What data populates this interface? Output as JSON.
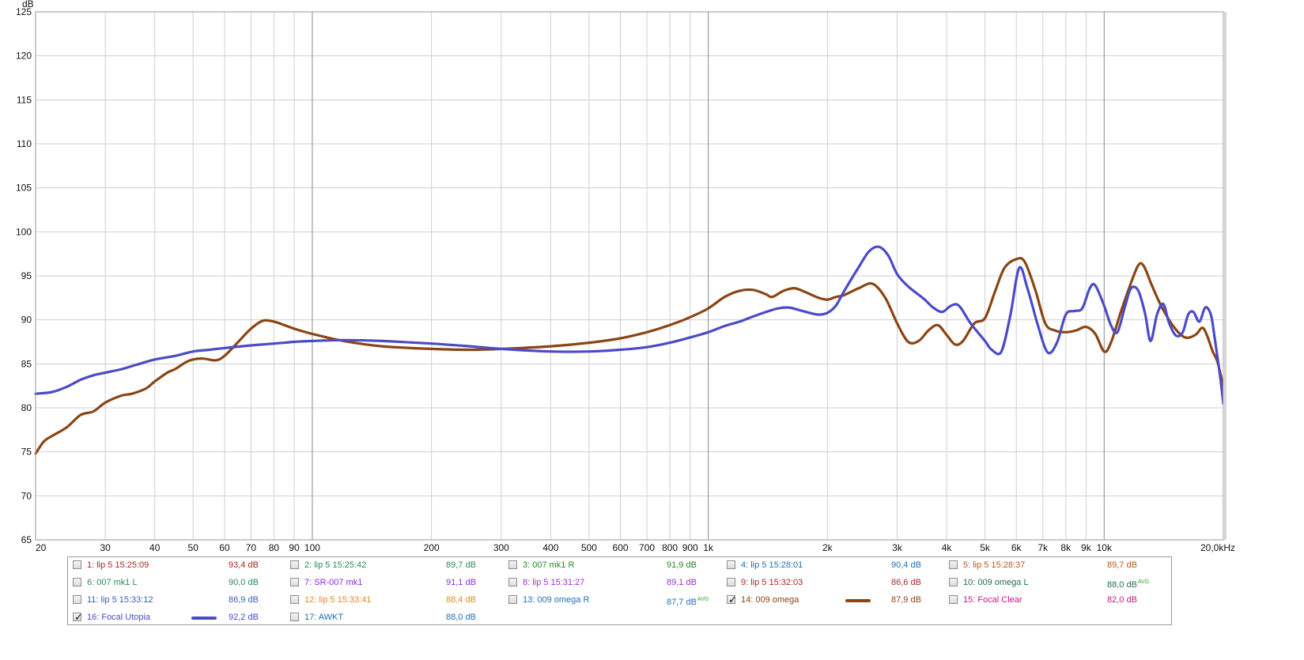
{
  "chart_data": {
    "type": "line",
    "ylabel": "dB",
    "xscale": "log",
    "xlim": [
      20,
      20000
    ],
    "ylim": [
      65,
      125
    ],
    "grid": true,
    "y_ticks": [
      "125",
      "120",
      "115",
      "110",
      "105",
      "100",
      "95",
      "90",
      "85",
      "80",
      "75",
      "70",
      "65"
    ],
    "x_ticks": [
      {
        "value": 20,
        "label": "20"
      },
      {
        "value": 30,
        "label": "30"
      },
      {
        "value": 40,
        "label": "40"
      },
      {
        "value": 50,
        "label": "50"
      },
      {
        "value": 60,
        "label": "60"
      },
      {
        "value": 70,
        "label": "70"
      },
      {
        "value": 80,
        "label": "80"
      },
      {
        "value": 90,
        "label": "90"
      },
      {
        "value": 100,
        "label": "100"
      },
      {
        "value": 200,
        "label": "200"
      },
      {
        "value": 300,
        "label": "300"
      },
      {
        "value": 400,
        "label": "400"
      },
      {
        "value": 500,
        "label": "500"
      },
      {
        "value": 600,
        "label": "600"
      },
      {
        "value": 700,
        "label": "700"
      },
      {
        "value": 800,
        "label": "800"
      },
      {
        "value": 900,
        "label": "900"
      },
      {
        "value": 1000,
        "label": "1k"
      },
      {
        "value": 2000,
        "label": "2k"
      },
      {
        "value": 3000,
        "label": "3k"
      },
      {
        "value": 4000,
        "label": "4k"
      },
      {
        "value": 5000,
        "label": "5k"
      },
      {
        "value": 6000,
        "label": "6k"
      },
      {
        "value": 7000,
        "label": "7k"
      },
      {
        "value": 8000,
        "label": "8k"
      },
      {
        "value": 9000,
        "label": "9k"
      },
      {
        "value": 10000,
        "label": "10k"
      },
      {
        "value": 20000,
        "label": "20,0kHz"
      }
    ],
    "series": [
      {
        "name": "14: 009 omega",
        "color": "#8b4513",
        "points": [
          [
            20,
            74.8
          ],
          [
            21,
            76.2
          ],
          [
            22,
            76.8
          ],
          [
            24,
            77.8
          ],
          [
            26,
            79.2
          ],
          [
            28,
            79.6
          ],
          [
            30,
            80.6
          ],
          [
            33,
            81.4
          ],
          [
            35,
            81.6
          ],
          [
            38,
            82.2
          ],
          [
            40,
            83.0
          ],
          [
            43,
            84.0
          ],
          [
            45,
            84.4
          ],
          [
            48,
            85.2
          ],
          [
            50,
            85.5
          ],
          [
            53,
            85.6
          ],
          [
            57,
            85.4
          ],
          [
            60,
            85.9
          ],
          [
            65,
            87.5
          ],
          [
            70,
            89.0
          ],
          [
            75,
            89.9
          ],
          [
            80,
            89.8
          ],
          [
            85,
            89.4
          ],
          [
            90,
            89.0
          ],
          [
            100,
            88.4
          ],
          [
            120,
            87.6
          ],
          [
            150,
            87.0
          ],
          [
            200,
            86.7
          ],
          [
            250,
            86.6
          ],
          [
            300,
            86.7
          ],
          [
            400,
            87.0
          ],
          [
            500,
            87.4
          ],
          [
            600,
            87.9
          ],
          [
            700,
            88.6
          ],
          [
            800,
            89.4
          ],
          [
            900,
            90.3
          ],
          [
            1000,
            91.3
          ],
          [
            1100,
            92.6
          ],
          [
            1200,
            93.3
          ],
          [
            1300,
            93.4
          ],
          [
            1400,
            92.9
          ],
          [
            1450,
            92.6
          ],
          [
            1550,
            93.3
          ],
          [
            1650,
            93.6
          ],
          [
            1750,
            93.2
          ],
          [
            1900,
            92.5
          ],
          [
            2000,
            92.3
          ],
          [
            2100,
            92.6
          ],
          [
            2200,
            92.8
          ],
          [
            2400,
            93.6
          ],
          [
            2600,
            94.1
          ],
          [
            2800,
            92.5
          ],
          [
            3000,
            89.6
          ],
          [
            3200,
            87.5
          ],
          [
            3400,
            87.6
          ],
          [
            3600,
            88.8
          ],
          [
            3800,
            89.4
          ],
          [
            4000,
            88.3
          ],
          [
            4200,
            87.2
          ],
          [
            4400,
            87.6
          ],
          [
            4700,
            89.6
          ],
          [
            5000,
            90.2
          ],
          [
            5300,
            93.2
          ],
          [
            5600,
            95.9
          ],
          [
            6000,
            96.9
          ],
          [
            6300,
            96.6
          ],
          [
            6700,
            93.4
          ],
          [
            7100,
            89.6
          ],
          [
            7500,
            88.8
          ],
          [
            8000,
            88.6
          ],
          [
            8500,
            88.8
          ],
          [
            9000,
            89.2
          ],
          [
            9500,
            88.4
          ],
          [
            10000,
            86.4
          ],
          [
            10400,
            87.4
          ],
          [
            11000,
            90.8
          ],
          [
            11600,
            93.8
          ],
          [
            12200,
            96.2
          ],
          [
            12600,
            96.1
          ],
          [
            13200,
            93.9
          ],
          [
            14000,
            91.4
          ],
          [
            15000,
            89.2
          ],
          [
            16000,
            88.0
          ],
          [
            17000,
            88.3
          ],
          [
            17700,
            89.1
          ],
          [
            18200,
            88.2
          ],
          [
            18800,
            86.4
          ],
          [
            19300,
            85.3
          ],
          [
            20000,
            82.5
          ]
        ]
      },
      {
        "name": "16: Focal Utopia",
        "color": "#4b4bc8",
        "points": [
          [
            20,
            81.6
          ],
          [
            22,
            81.8
          ],
          [
            24,
            82.4
          ],
          [
            26,
            83.2
          ],
          [
            28,
            83.7
          ],
          [
            30,
            84.0
          ],
          [
            33,
            84.4
          ],
          [
            36,
            84.9
          ],
          [
            40,
            85.5
          ],
          [
            45,
            85.9
          ],
          [
            50,
            86.4
          ],
          [
            55,
            86.6
          ],
          [
            60,
            86.8
          ],
          [
            70,
            87.1
          ],
          [
            80,
            87.3
          ],
          [
            90,
            87.5
          ],
          [
            100,
            87.6
          ],
          [
            120,
            87.7
          ],
          [
            150,
            87.6
          ],
          [
            200,
            87.3
          ],
          [
            250,
            87.0
          ],
          [
            300,
            86.7
          ],
          [
            400,
            86.4
          ],
          [
            500,
            86.4
          ],
          [
            600,
            86.6
          ],
          [
            700,
            86.9
          ],
          [
            800,
            87.4
          ],
          [
            900,
            88.0
          ],
          [
            1000,
            88.6
          ],
          [
            1100,
            89.3
          ],
          [
            1200,
            89.8
          ],
          [
            1300,
            90.4
          ],
          [
            1400,
            90.9
          ],
          [
            1500,
            91.3
          ],
          [
            1600,
            91.4
          ],
          [
            1700,
            91.1
          ],
          [
            1800,
            90.8
          ],
          [
            1900,
            90.6
          ],
          [
            2000,
            90.8
          ],
          [
            2100,
            91.6
          ],
          [
            2200,
            93.2
          ],
          [
            2400,
            96.0
          ],
          [
            2550,
            97.8
          ],
          [
            2700,
            98.3
          ],
          [
            2850,
            97.3
          ],
          [
            3000,
            95.2
          ],
          [
            3200,
            93.8
          ],
          [
            3500,
            92.4
          ],
          [
            3700,
            91.4
          ],
          [
            3900,
            90.9
          ],
          [
            4100,
            91.6
          ],
          [
            4300,
            91.6
          ],
          [
            4600,
            89.6
          ],
          [
            5000,
            87.6
          ],
          [
            5200,
            86.6
          ],
          [
            5500,
            86.4
          ],
          [
            5800,
            90.6
          ],
          [
            6100,
            95.9
          ],
          [
            6400,
            93.6
          ],
          [
            6800,
            89.4
          ],
          [
            7200,
            86.3
          ],
          [
            7600,
            87.4
          ],
          [
            8000,
            90.6
          ],
          [
            8400,
            91.0
          ],
          [
            8800,
            91.3
          ],
          [
            9200,
            93.6
          ],
          [
            9500,
            93.9
          ],
          [
            10000,
            91.6
          ],
          [
            10400,
            89.4
          ],
          [
            10800,
            88.6
          ],
          [
            11300,
            91.6
          ],
          [
            11700,
            93.6
          ],
          [
            12200,
            93.3
          ],
          [
            12700,
            90.6
          ],
          [
            13100,
            87.6
          ],
          [
            13600,
            90.6
          ],
          [
            14100,
            91.8
          ],
          [
            14600,
            89.6
          ],
          [
            15200,
            88.2
          ],
          [
            15800,
            88.6
          ],
          [
            16300,
            90.6
          ],
          [
            16800,
            90.9
          ],
          [
            17400,
            89.8
          ],
          [
            18000,
            91.4
          ],
          [
            18600,
            90.6
          ],
          [
            19000,
            88.1
          ],
          [
            19600,
            83.8
          ],
          [
            20000,
            80.5
          ]
        ]
      }
    ]
  },
  "legend": [
    {
      "label": "1: lip 5 15:25:09",
      "value": "93,4 dB",
      "avg": "",
      "checked": false,
      "color": "#b22222",
      "swatch": false
    },
    {
      "label": "2: lip 5 15:25:42",
      "value": "89,7 dB",
      "avg": "",
      "checked": false,
      "color": "#2e8b57",
      "swatch": false
    },
    {
      "label": "3: 007 mk1 R",
      "value": "91,9 dB",
      "avg": "",
      "checked": false,
      "color": "#228b22",
      "swatch": false
    },
    {
      "label": "4: lip 5 15:28:01",
      "value": "90,4 dB",
      "avg": "",
      "checked": false,
      "color": "#1e6fb8",
      "swatch": false
    },
    {
      "label": "5: lip 5 15:28:37",
      "value": "89,7 dB",
      "avg": "",
      "checked": false,
      "color": "#b8561e",
      "swatch": false
    },
    {
      "label": "6: 007 mk1 L",
      "value": "90,0 dB",
      "avg": "",
      "checked": false,
      "color": "#2e8b57",
      "swatch": false
    },
    {
      "label": "7: SR-007 mk1",
      "value": "91,1 dB",
      "avg": "",
      "checked": false,
      "color": "#8a2be2",
      "swatch": false
    },
    {
      "label": "8: lip 5 15:31:27",
      "value": "89,1 dB",
      "avg": "",
      "checked": false,
      "color": "#9932cc",
      "swatch": false
    },
    {
      "label": "9: lip 5 15:32:03",
      "value": "86,6 dB",
      "avg": "",
      "checked": false,
      "color": "#a52a2a",
      "swatch": false
    },
    {
      "label": "10: 009 omega L",
      "value": "88,0 dB",
      "avg": "AVG",
      "checked": false,
      "color": "#1f6f4f",
      "swatch": false
    },
    {
      "label": "11: lip 5 15:33:12",
      "value": "86,9 dB",
      "avg": "",
      "checked": false,
      "color": "#3b5bb8",
      "swatch": false
    },
    {
      "label": "12: lip 5 15:33:41",
      "value": "88,4 dB",
      "avg": "",
      "checked": false,
      "color": "#e08a1e",
      "swatch": false
    },
    {
      "label": "13: 009 omega R",
      "value": "87,7 dB",
      "avg": "AVG",
      "checked": false,
      "color": "#1e6fb8",
      "swatch": false
    },
    {
      "label": "14: 009 omega",
      "value": "87,9 dB",
      "avg": "",
      "checked": true,
      "color": "#8b4513",
      "swatch": true
    },
    {
      "label": "15: Focal Clear",
      "value": "82,0 dB",
      "avg": "",
      "checked": false,
      "color": "#c71585",
      "swatch": false
    },
    {
      "label": "16: Focal Utopia",
      "value": "92,2 dB",
      "avg": "",
      "checked": true,
      "color": "#4b4bc8",
      "swatch": true
    },
    {
      "label": "17: AWKT",
      "value": "88,0 dB",
      "avg": "",
      "checked": false,
      "color": "#1e6fb8",
      "swatch": false
    }
  ],
  "checkmark": "✓"
}
